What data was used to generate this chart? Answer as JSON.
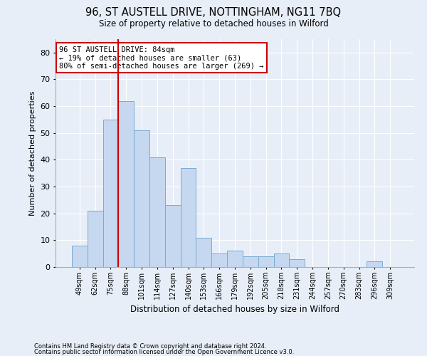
{
  "title": "96, ST AUSTELL DRIVE, NOTTINGHAM, NG11 7BQ",
  "subtitle": "Size of property relative to detached houses in Wilford",
  "xlabel": "Distribution of detached houses by size in Wilford",
  "ylabel": "Number of detached properties",
  "categories": [
    "49sqm",
    "62sqm",
    "75sqm",
    "88sqm",
    "101sqm",
    "114sqm",
    "127sqm",
    "140sqm",
    "153sqm",
    "166sqm",
    "179sqm",
    "192sqm",
    "205sqm",
    "218sqm",
    "231sqm",
    "244sqm",
    "257sqm",
    "270sqm",
    "283sqm",
    "296sqm",
    "309sqm"
  ],
  "values": [
    8,
    21,
    55,
    62,
    51,
    41,
    23,
    37,
    11,
    5,
    6,
    4,
    4,
    5,
    3,
    0,
    0,
    0,
    0,
    2,
    0
  ],
  "bar_color": "#c5d8f0",
  "bar_edge_color": "#7aabcf",
  "vline_x": 2.5,
  "vline_color": "#cc0000",
  "annotation_text": "96 ST AUSTELL DRIVE: 84sqm\n← 19% of detached houses are smaller (63)\n80% of semi-detached houses are larger (269) →",
  "annotation_box_color": "white",
  "annotation_box_edge": "#cc0000",
  "ylim": [
    0,
    85
  ],
  "yticks": [
    0,
    10,
    20,
    30,
    40,
    50,
    60,
    70,
    80
  ],
  "background_color": "#e8eef8",
  "grid_color": "#ffffff",
  "footnote1": "Contains HM Land Registry data © Crown copyright and database right 2024.",
  "footnote2": "Contains public sector information licensed under the Open Government Licence v3.0."
}
